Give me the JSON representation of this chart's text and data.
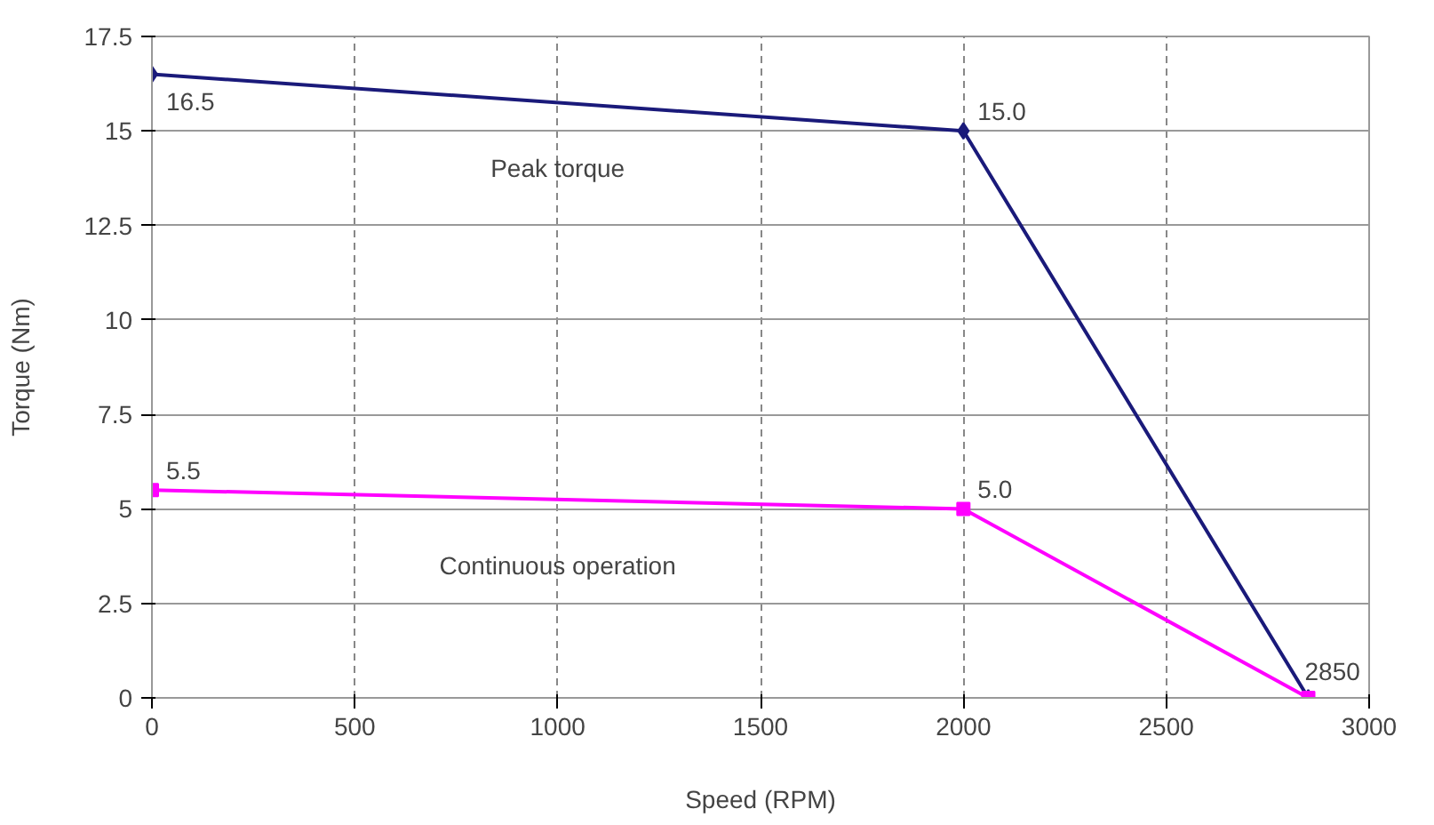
{
  "chart_data": {
    "type": "line",
    "xlabel": "Speed (RPM)",
    "ylabel": "Torque (Nm)",
    "xlim": [
      0,
      3000
    ],
    "xticks": [
      0,
      500,
      1000,
      1500,
      2000,
      2500,
      3000
    ],
    "ylim": [
      0,
      17.5
    ],
    "yticks": [
      0,
      2.5,
      5,
      7.5,
      10,
      12.5,
      15,
      17.5
    ],
    "grid": true,
    "series": [
      {
        "name": "Peak torque",
        "color": "#1a1a7a",
        "marker": "diamond",
        "x": [
          0,
          2000,
          2850
        ],
        "values": [
          16.5,
          15.0,
          0
        ],
        "value_labels": [
          "16.5",
          "15.0",
          null
        ]
      },
      {
        "name": "Continuous operation",
        "color": "#ff00ff",
        "marker": "square",
        "x": [
          0,
          2000,
          2850
        ],
        "values": [
          5.5,
          5.0,
          0
        ],
        "value_labels": [
          "5.5",
          "5.0",
          null
        ]
      }
    ],
    "annotations": [
      {
        "text": "2850",
        "x": 2850,
        "y": 0
      }
    ]
  }
}
